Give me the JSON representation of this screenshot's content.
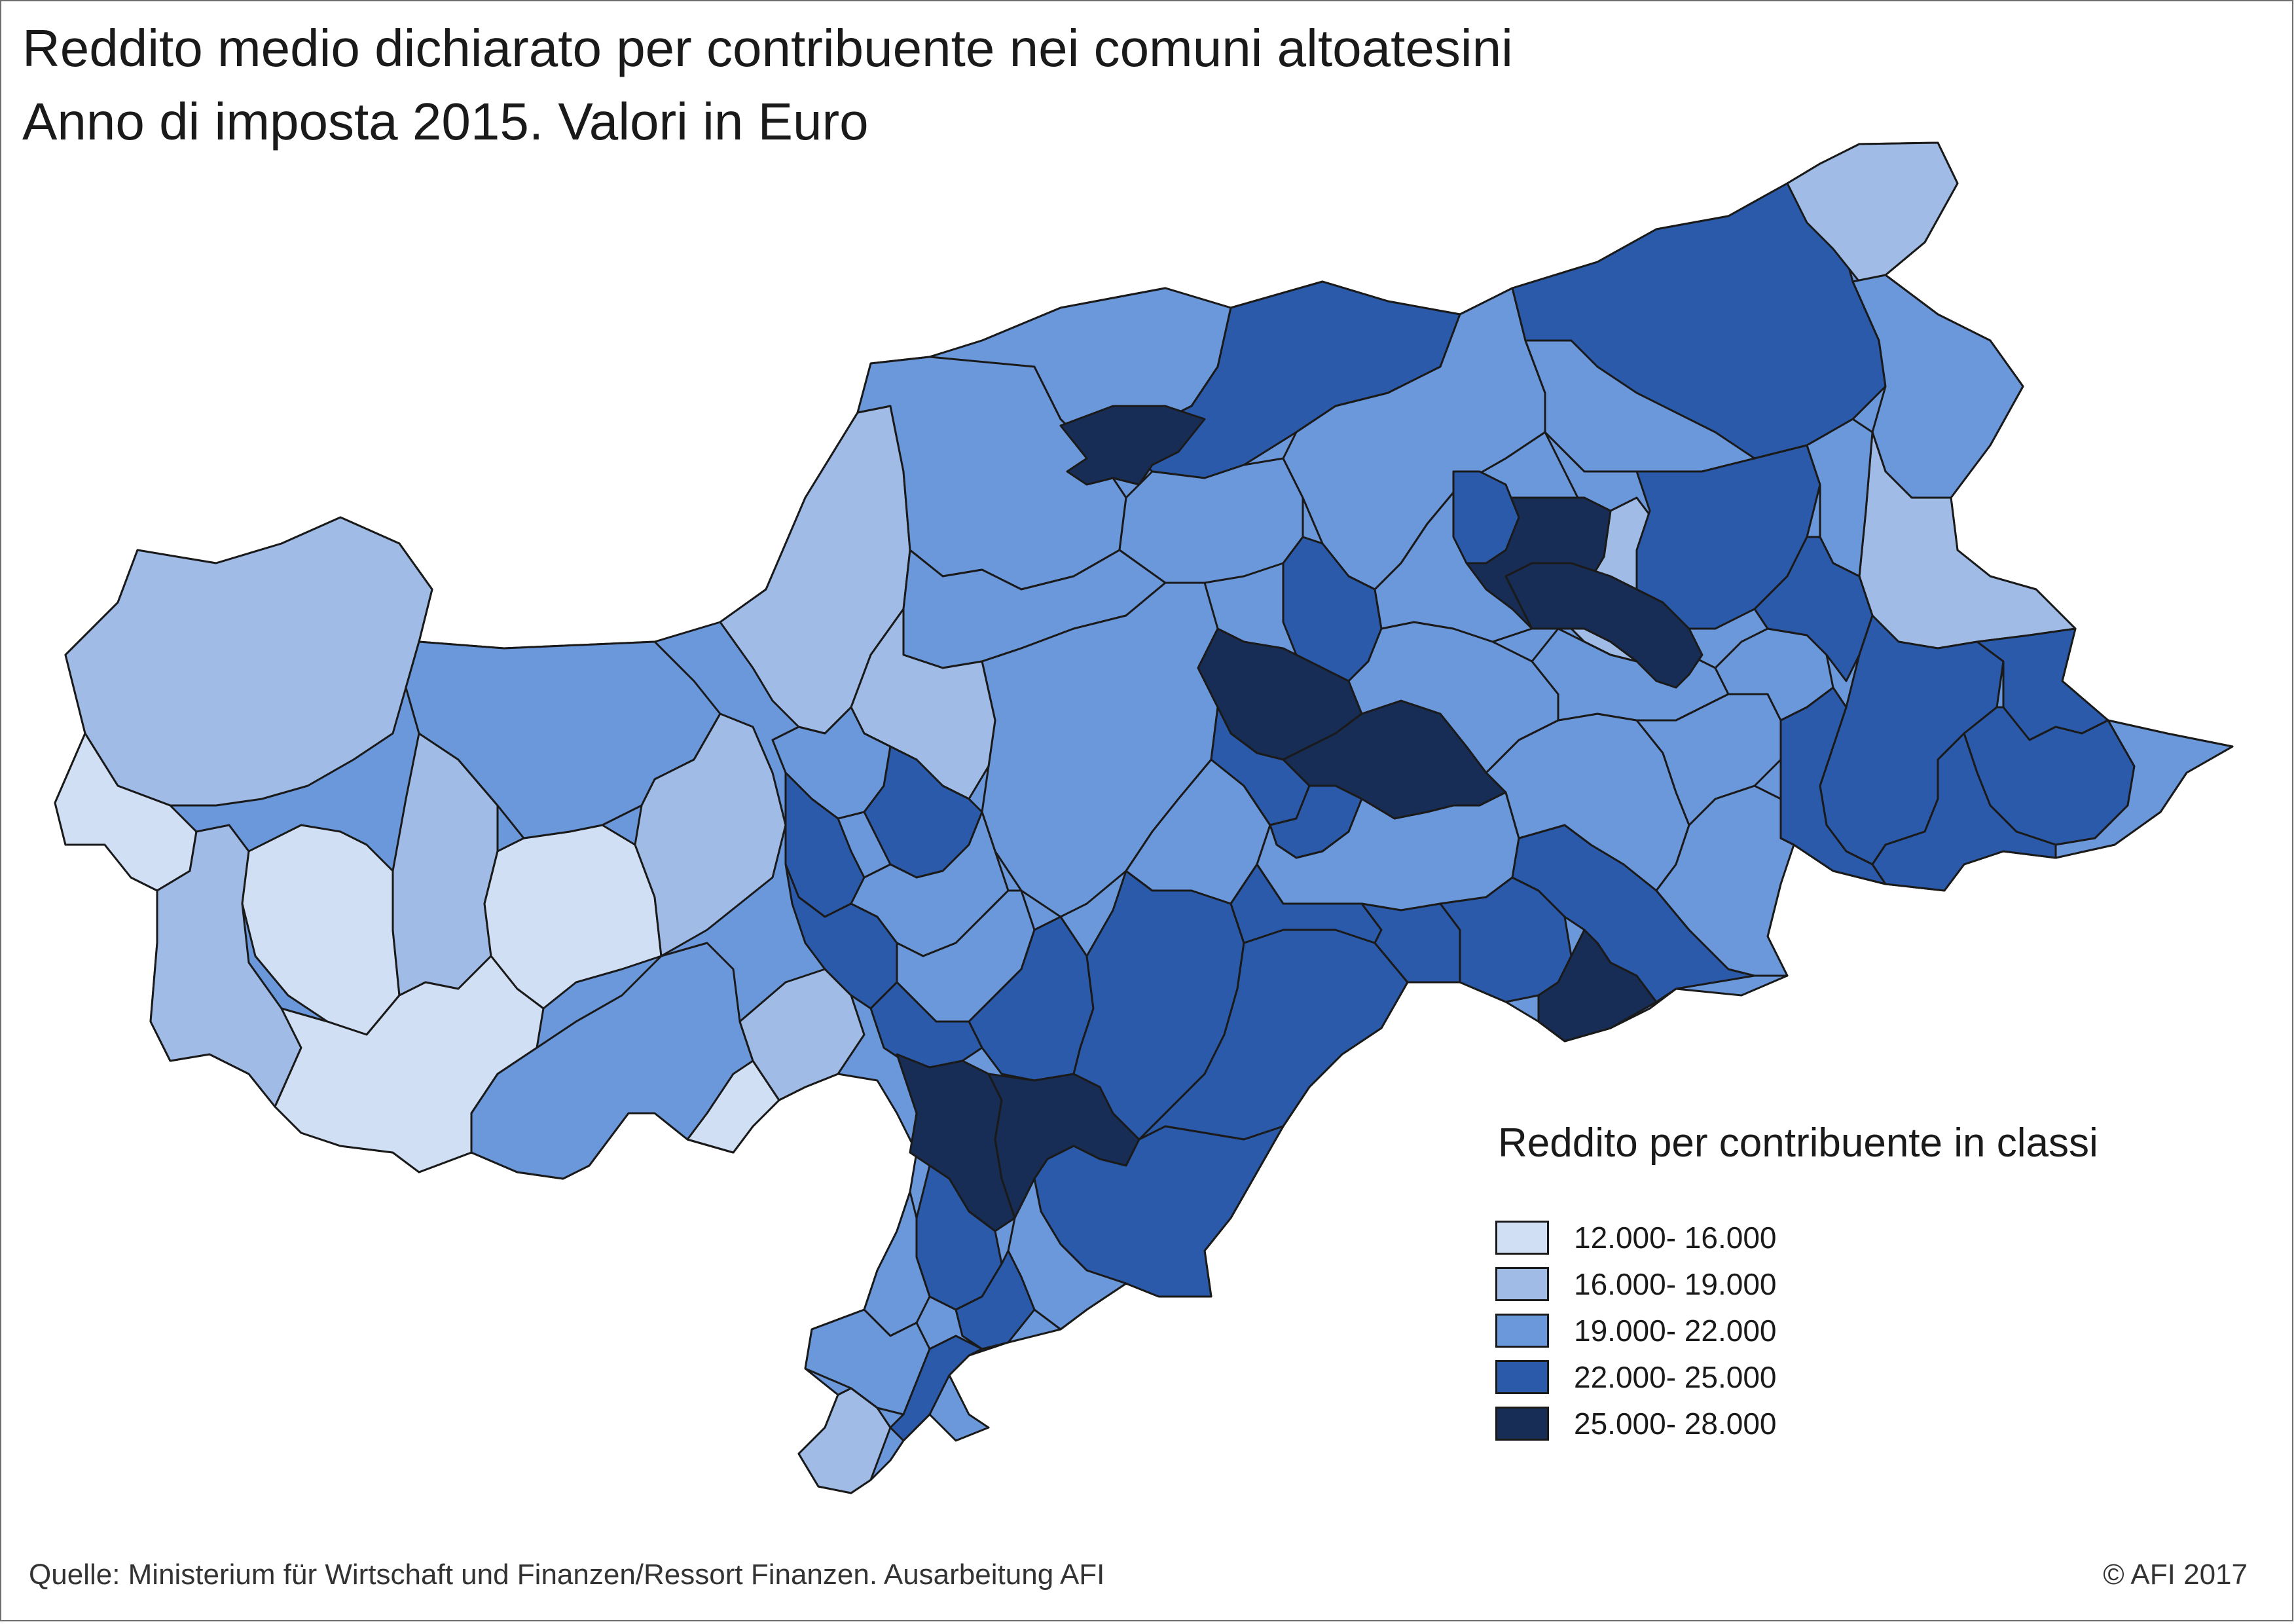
{
  "title": "Reddito medio dichiarato per contribuente nei comuni altoatesini",
  "subtitle": "Anno di imposta 2015. Valori in Euro",
  "legend": {
    "title": "Reddito per contribuente in classi",
    "classes": [
      {
        "label": "12.000- 16.000",
        "color": "#d0dff3"
      },
      {
        "label": "16.000- 19.000",
        "color": "#9fbbe6"
      },
      {
        "label": "19.000- 22.000",
        "color": "#6b97db"
      },
      {
        "label": "22.000- 25.000",
        "color": "#2a5aa9"
      },
      {
        "label": "25.000- 28.000",
        "color": "#172d55"
      }
    ]
  },
  "source": "Quelle: Ministerium für Wirtschaft und Finanzen/Ressort Finanzen. Ausarbeitung AFI",
  "credit": "© AFI 2017"
}
